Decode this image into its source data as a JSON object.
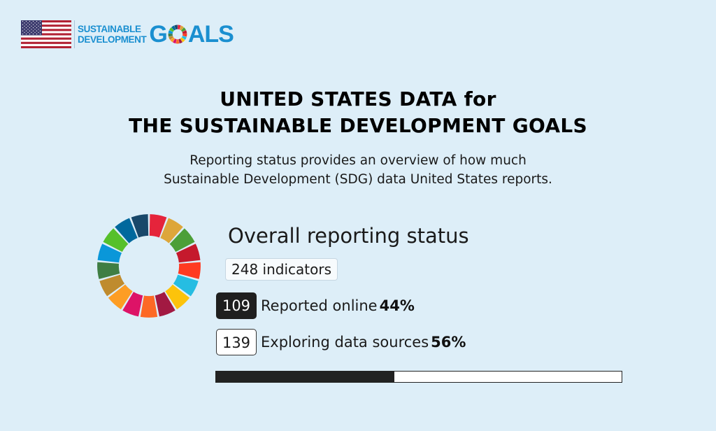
{
  "header": {
    "flag_icon": "us-flag-icon",
    "logo_line1": "SUSTAINABLE",
    "logo_line2": "DEVELOPMENT",
    "logo_goals_g": "G",
    "logo_goals_rest": "ALS",
    "logo_wheel_icon": "sdg-wheel-icon"
  },
  "title": {
    "line1": "UNITED STATES DATA for",
    "line2": "THE SUSTAINABLE DEVELOPMENT GOALS"
  },
  "subtitle": {
    "line1": "Reporting status provides an overview of how much",
    "line2": "Sustainable Development (SDG) data United States reports."
  },
  "status": {
    "wheel_icon": "sdg-wheel-icon",
    "heading": "Overall reporting status",
    "indicators": "248 indicators",
    "reported": {
      "count": "109",
      "label": "Reported online",
      "percent": "44%"
    },
    "exploring": {
      "count": "139",
      "label": "Exploring data sources",
      "percent": "56%"
    },
    "progress_fraction": 0.44
  },
  "colors": {
    "background": "#ddeef8",
    "brand_blue": "#1a8fd0",
    "sdg": [
      "#e5243b",
      "#dda63a",
      "#4c9f38",
      "#c5192d",
      "#ff3a21",
      "#26bde2",
      "#fcc30b",
      "#a21942",
      "#fd6925",
      "#dd1367",
      "#fd9d24",
      "#bf8b2e",
      "#3f7e44",
      "#0a97d9",
      "#56c02b",
      "#00689d",
      "#19486a"
    ]
  }
}
